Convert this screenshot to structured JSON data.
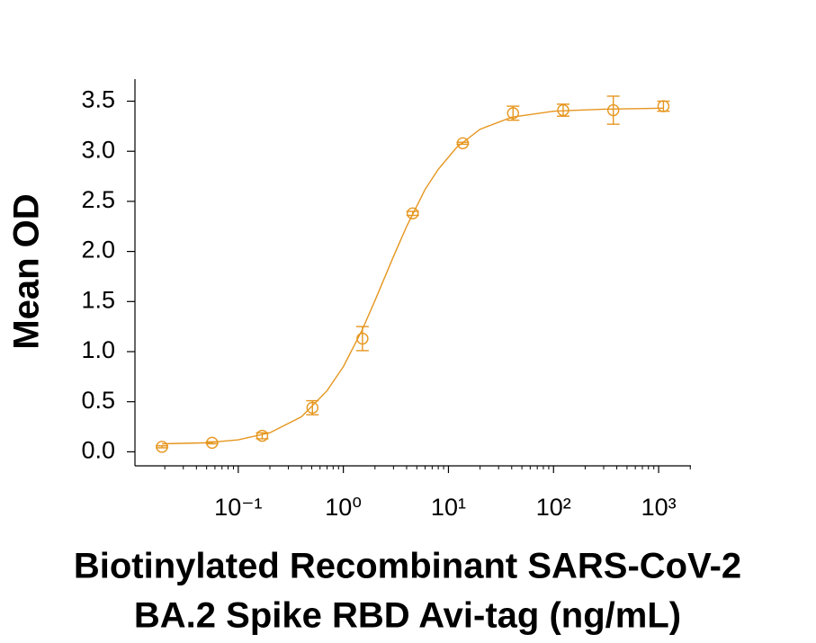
{
  "chart_data": {
    "type": "scatter",
    "ylabel": "Mean OD",
    "xlabel": [
      "Biotinylated Recombinant SARS-CoV-2",
      "BA.2 Spike RBD Avi-tag (ng/mL)"
    ],
    "xscale": "log",
    "minor_ticks": true,
    "xlim": [
      0.0104,
      2030
    ],
    "ylim": [
      -0.14,
      3.72
    ],
    "xticks": [
      {
        "value": 0.1,
        "label": "10⁻¹"
      },
      {
        "value": 1,
        "label": "10⁰"
      },
      {
        "value": 10,
        "label": "10¹"
      },
      {
        "value": 100,
        "label": "10²"
      },
      {
        "value": 1000,
        "label": "10³"
      }
    ],
    "yticks": [
      {
        "value": 0,
        "label": "0.0"
      },
      0.5,
      {
        "value": 1,
        "label": "1.0"
      },
      1.5,
      {
        "value": 2,
        "label": "2.0"
      },
      2.5,
      {
        "value": 3,
        "label": "3.0"
      },
      3.5
    ],
    "series": [
      {
        "type": "scatter",
        "color": "#e6961f",
        "x": [
          0.0188,
          0.0564,
          0.169,
          0.508,
          1.52,
          4.57,
          13.7,
          41.2,
          123.5,
          370.4,
          1111.1
        ],
        "values": [
          0.05,
          0.09,
          0.16,
          0.44,
          1.13,
          2.38,
          3.08,
          3.38,
          3.41,
          3.41,
          3.45
        ],
        "errors": [
          0.01,
          0.01,
          0.03,
          0.07,
          0.12,
          0.02,
          0.01,
          0.07,
          0.06,
          0.14,
          0.05
        ]
      },
      {
        "type": "line",
        "color": "#e6961f",
        "x": [
          0.0188,
          0.05,
          0.1,
          0.2,
          0.4,
          0.7,
          1,
          1.5,
          2,
          3,
          4,
          6,
          8,
          12,
          20,
          40,
          100,
          300,
          1111.1
        ],
        "values": [
          0.08,
          0.09,
          0.12,
          0.19,
          0.35,
          0.61,
          0.85,
          1.21,
          1.51,
          1.95,
          2.25,
          2.62,
          2.82,
          3.04,
          3.22,
          3.34,
          3.4,
          3.42,
          3.43
        ]
      }
    ]
  }
}
